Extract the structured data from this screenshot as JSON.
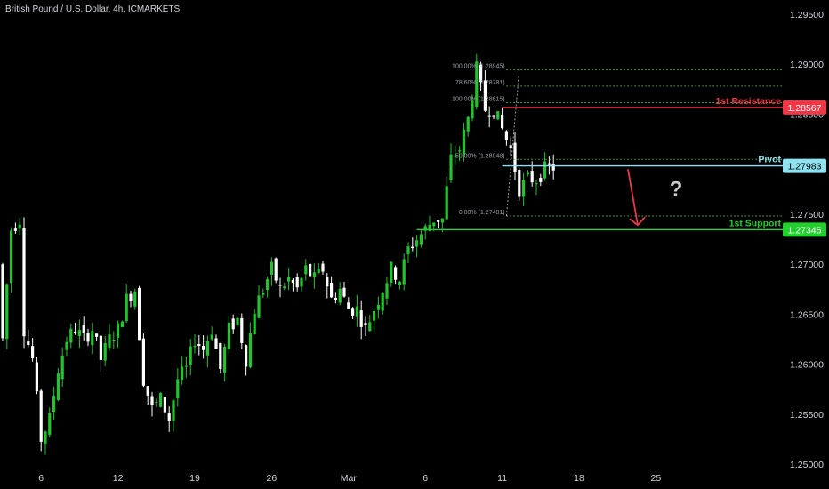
{
  "header": {
    "symbol_title": "British Pound / U.S. Dollar, 4h, ICMARKETS"
  },
  "colors": {
    "background": "#000000",
    "bull": "#22c32e",
    "bear": "#ffffff",
    "resistance": "#f23645",
    "support": "#22d02e",
    "pivot": "#8fe3f0",
    "fib": "#5ec24a",
    "axis_text": "#d1d4dc",
    "arrow": "#e8384a",
    "question": "#c9c9c9"
  },
  "chart_data": {
    "type": "candlestick",
    "price_axis": {
      "min": 1.25,
      "max": 1.2975,
      "tick_labels": [
        "1.29500",
        "1.29000",
        "1.28500",
        "1.28000",
        "1.27500",
        "1.27000",
        "1.26500",
        "1.26000",
        "1.25500",
        "1.25000"
      ],
      "tick_values": [
        1.295,
        1.29,
        1.285,
        1.28,
        1.275,
        1.27,
        1.265,
        1.26,
        1.255,
        1.25
      ]
    },
    "time_axis": {
      "labels": [
        "6",
        "12",
        "19",
        "26",
        "Mar",
        "6",
        "11",
        "18",
        "25"
      ],
      "bar_index": [
        9,
        27,
        45,
        63,
        81,
        99,
        117,
        135,
        153
      ]
    },
    "levels": [
      {
        "name": "resistance",
        "label": "1st Resistance",
        "value": 1.28567,
        "price_label": "1.28567",
        "start_bar": 117
      },
      {
        "name": "pivot",
        "label": "Pivot",
        "value": 1.27983,
        "price_label": "1.27983",
        "start_bar": 117
      },
      {
        "name": "support",
        "label": "1st Support",
        "value": 1.27345,
        "price_label": "1.27345",
        "start_bar": 97
      }
    ],
    "fib_levels": [
      {
        "label": "100.00% (1.28945)",
        "value": 1.28945
      },
      {
        "label": "78.60% (1.28781)",
        "value": 1.28781
      },
      {
        "label": "100.00% (1.28615)",
        "value": 1.28615
      },
      {
        "label": "50.00% (1.28048)",
        "value": 1.28048
      },
      {
        "label": "0.00% (1.27481)",
        "value": 1.27481
      }
    ],
    "annotations": {
      "question": "?"
    },
    "key_points": [
      [
        0,
        1.2625
      ],
      [
        2,
        1.2735
      ],
      [
        4,
        1.2745
      ],
      [
        5,
        1.2635
      ],
      [
        7,
        1.2605
      ],
      [
        9,
        1.2525
      ],
      [
        11,
        1.2545
      ],
      [
        13,
        1.2595
      ],
      [
        15,
        1.2625
      ],
      [
        17,
        1.2635
      ],
      [
        19,
        1.2625
      ],
      [
        21,
        1.2635
      ],
      [
        23,
        1.2605
      ],
      [
        25,
        1.2625
      ],
      [
        27,
        1.2635
      ],
      [
        29,
        1.2665
      ],
      [
        31,
        1.2675
      ],
      [
        33,
        1.2585
      ],
      [
        35,
        1.2555
      ],
      [
        37,
        1.2565
      ],
      [
        39,
        1.2545
      ],
      [
        41,
        1.2585
      ],
      [
        43,
        1.2595
      ],
      [
        45,
        1.2625
      ],
      [
        47,
        1.2615
      ],
      [
        49,
        1.2635
      ],
      [
        51,
        1.2595
      ],
      [
        53,
        1.2635
      ],
      [
        55,
        1.2645
      ],
      [
        57,
        1.2605
      ],
      [
        59,
        1.2655
      ],
      [
        61,
        1.2675
      ],
      [
        63,
        1.2695
      ],
      [
        65,
        1.2675
      ],
      [
        67,
        1.2685
      ],
      [
        69,
        1.2675
      ],
      [
        71,
        1.2695
      ],
      [
        73,
        1.2685
      ],
      [
        75,
        1.2695
      ],
      [
        77,
        1.2665
      ],
      [
        79,
        1.2675
      ],
      [
        81,
        1.2655
      ],
      [
        83,
        1.2655
      ],
      [
        85,
        1.2635
      ],
      [
        87,
        1.2655
      ],
      [
        89,
        1.2675
      ],
      [
        91,
        1.2695
      ],
      [
        93,
        1.2685
      ],
      [
        95,
        1.2715
      ],
      [
        97,
        1.2725
      ],
      [
        99,
        1.2735
      ],
      [
        101,
        1.2745
      ],
      [
        103,
        1.2745
      ],
      [
        105,
        1.2805
      ],
      [
        107,
        1.2815
      ],
      [
        109,
        1.2845
      ],
      [
        111,
        1.2895
      ],
      [
        113,
        1.2855
      ],
      [
        115,
        1.2855
      ],
      [
        117,
        1.2835
      ],
      [
        119,
        1.2815
      ],
      [
        121,
        1.2775
      ],
      [
        123,
        1.2785
      ],
      [
        125,
        1.2785
      ],
      [
        127,
        1.2795
      ],
      [
        129,
        1.2797
      ]
    ]
  }
}
